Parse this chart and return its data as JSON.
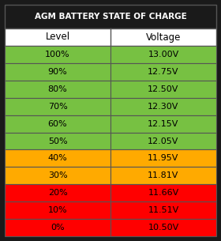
{
  "title": "AGM BATTERY STATE OF CHARGE",
  "title_bg": "#1a1a1a",
  "title_color": "#ffffff",
  "header_bg": "#ffffff",
  "header_color": "#000000",
  "col1_header": "Level",
  "col2_header": "Voltage",
  "rows": [
    {
      "level": "100%",
      "voltage": "13.00V",
      "color": "#77c142"
    },
    {
      "level": "90%",
      "voltage": "12.75V",
      "color": "#77c142"
    },
    {
      "level": "80%",
      "voltage": "12.50V",
      "color": "#77c142"
    },
    {
      "level": "70%",
      "voltage": "12.30V",
      "color": "#77c142"
    },
    {
      "level": "60%",
      "voltage": "12.15V",
      "color": "#77c142"
    },
    {
      "level": "50%",
      "voltage": "12.05V",
      "color": "#77c142"
    },
    {
      "level": "40%",
      "voltage": "11.95V",
      "color": "#ffaa00"
    },
    {
      "level": "30%",
      "voltage": "11.81V",
      "color": "#ffaa00"
    },
    {
      "level": "20%",
      "voltage": "11.66V",
      "color": "#ff0000"
    },
    {
      "level": "10%",
      "voltage": "11.51V",
      "color": "#ff0000"
    },
    {
      "level": "0%",
      "voltage": "10.50V",
      "color": "#ff0000"
    }
  ],
  "border_color": "#555555",
  "text_color_data": "#000000",
  "font_size_title": 7.5,
  "font_size_header": 8.5,
  "font_size_data": 8.0
}
